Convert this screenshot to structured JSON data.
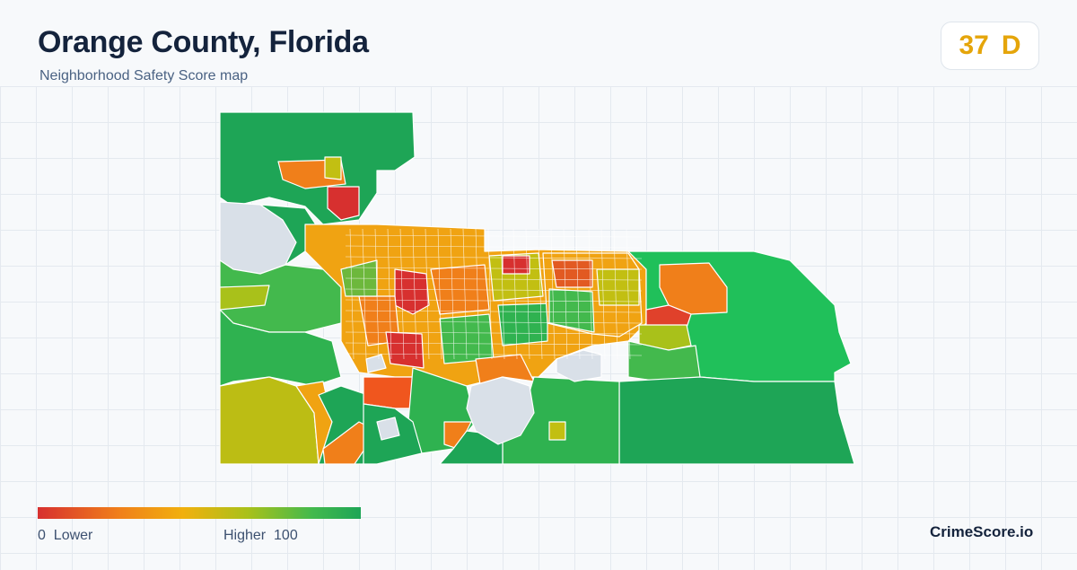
{
  "header": {
    "title": "Orange County, Florida",
    "subtitle": "Neighborhood Safety Score map"
  },
  "score": {
    "value": "37",
    "grade": "D",
    "color": "#e5a50a"
  },
  "legend": {
    "min_value": "0",
    "min_label": "Lower",
    "max_label": "Higher",
    "max_value": "100",
    "colors": [
      "#d7302f",
      "#f07f1a",
      "#f1b00e",
      "#a9c11a",
      "#43b94d",
      "#1ea556"
    ]
  },
  "footer": {
    "brand": "CrimeScore.io"
  },
  "map": {
    "no_data_color": "#d9e0e8",
    "border_color": "#ffffff"
  }
}
